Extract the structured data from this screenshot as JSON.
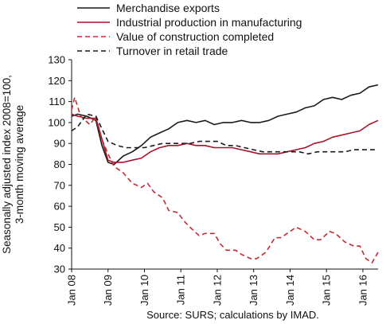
{
  "chart_data": {
    "type": "line",
    "title": "",
    "ylabel": "Seasonally adjusted index 2008=100, 3-month moving average",
    "ylim": [
      30,
      130
    ],
    "yticks": [
      30,
      40,
      50,
      60,
      70,
      80,
      90,
      100,
      110,
      120,
      130
    ],
    "x_start": "2008-01",
    "x_end": "2016-06",
    "xtick_labels": [
      "Jan 08",
      "Jan 09",
      "Jan 10",
      "Jan 11",
      "Jan 12",
      "Jan 13",
      "Jan 14",
      "Jan 15",
      "Jan 16"
    ],
    "grid": false,
    "legend_position": "top-left",
    "source": "Source: SURS; calculations by IMAD.",
    "series": [
      {
        "name": "Merchandise exports",
        "color": "#1a1a1a",
        "dash": "solid",
        "points": [
          [
            "2008-01",
            103
          ],
          [
            "2008-03",
            104
          ],
          [
            "2008-06",
            103
          ],
          [
            "2008-09",
            101
          ],
          [
            "2008-11",
            89
          ],
          [
            "2009-01",
            81
          ],
          [
            "2009-03",
            80
          ],
          [
            "2009-06",
            84
          ],
          [
            "2009-09",
            86
          ],
          [
            "2009-12",
            89
          ],
          [
            "2010-03",
            93
          ],
          [
            "2010-06",
            95
          ],
          [
            "2010-09",
            97
          ],
          [
            "2010-12",
            100
          ],
          [
            "2011-03",
            101
          ],
          [
            "2011-06",
            100
          ],
          [
            "2011-09",
            101
          ],
          [
            "2011-12",
            99
          ],
          [
            "2012-03",
            100
          ],
          [
            "2012-06",
            100
          ],
          [
            "2012-09",
            101
          ],
          [
            "2012-12",
            100
          ],
          [
            "2013-03",
            100
          ],
          [
            "2013-06",
            101
          ],
          [
            "2013-09",
            103
          ],
          [
            "2013-12",
            104
          ],
          [
            "2014-03",
            105
          ],
          [
            "2014-06",
            107
          ],
          [
            "2014-09",
            108
          ],
          [
            "2014-12",
            111
          ],
          [
            "2015-03",
            112
          ],
          [
            "2015-06",
            111
          ],
          [
            "2015-09",
            113
          ],
          [
            "2015-12",
            114
          ],
          [
            "2016-03",
            117
          ],
          [
            "2016-06",
            118
          ]
        ]
      },
      {
        "name": "Industrial production in manufacturing",
        "color": "#a8122a",
        "dash": "solid",
        "points": [
          [
            "2008-01",
            104
          ],
          [
            "2008-03",
            103
          ],
          [
            "2008-06",
            102
          ],
          [
            "2008-09",
            102
          ],
          [
            "2008-11",
            92
          ],
          [
            "2009-01",
            82
          ],
          [
            "2009-03",
            81
          ],
          [
            "2009-06",
            81
          ],
          [
            "2009-09",
            82
          ],
          [
            "2009-12",
            83
          ],
          [
            "2010-03",
            86
          ],
          [
            "2010-06",
            88
          ],
          [
            "2010-09",
            89
          ],
          [
            "2010-12",
            89
          ],
          [
            "2011-03",
            90
          ],
          [
            "2011-06",
            89
          ],
          [
            "2011-09",
            89
          ],
          [
            "2011-12",
            88
          ],
          [
            "2012-03",
            88
          ],
          [
            "2012-06",
            88
          ],
          [
            "2012-09",
            87
          ],
          [
            "2012-12",
            86
          ],
          [
            "2013-03",
            85
          ],
          [
            "2013-06",
            85
          ],
          [
            "2013-09",
            85
          ],
          [
            "2013-12",
            86
          ],
          [
            "2014-03",
            87
          ],
          [
            "2014-06",
            88
          ],
          [
            "2014-09",
            90
          ],
          [
            "2014-12",
            91
          ],
          [
            "2015-03",
            93
          ],
          [
            "2015-06",
            94
          ],
          [
            "2015-09",
            95
          ],
          [
            "2015-12",
            96
          ],
          [
            "2016-03",
            99
          ],
          [
            "2016-06",
            101
          ]
        ]
      },
      {
        "name": "Value of construction completed",
        "color": "#c22a35",
        "dash": "dashed",
        "points": [
          [
            "2008-01",
            106
          ],
          [
            "2008-02",
            112
          ],
          [
            "2008-04",
            103
          ],
          [
            "2008-07",
            99
          ],
          [
            "2008-09",
            103
          ],
          [
            "2008-11",
            92
          ],
          [
            "2009-01",
            85
          ],
          [
            "2009-03",
            79
          ],
          [
            "2009-06",
            76
          ],
          [
            "2009-09",
            71
          ],
          [
            "2009-12",
            69
          ],
          [
            "2010-02",
            71
          ],
          [
            "2010-04",
            67
          ],
          [
            "2010-07",
            64
          ],
          [
            "2010-09",
            58
          ],
          [
            "2010-12",
            57
          ],
          [
            "2011-02",
            53
          ],
          [
            "2011-04",
            50
          ],
          [
            "2011-07",
            46
          ],
          [
            "2011-09",
            47
          ],
          [
            "2011-12",
            47
          ],
          [
            "2012-02",
            42
          ],
          [
            "2012-04",
            39
          ],
          [
            "2012-07",
            39
          ],
          [
            "2012-09",
            37
          ],
          [
            "2012-12",
            35
          ],
          [
            "2013-02",
            35
          ],
          [
            "2013-05",
            38
          ],
          [
            "2013-08",
            45
          ],
          [
            "2013-10",
            45
          ],
          [
            "2014-01",
            48
          ],
          [
            "2014-03",
            50
          ],
          [
            "2014-06",
            48
          ],
          [
            "2014-09",
            44
          ],
          [
            "2014-11",
            44
          ],
          [
            "2015-02",
            48
          ],
          [
            "2015-04",
            47
          ],
          [
            "2015-07",
            43
          ],
          [
            "2015-10",
            41
          ],
          [
            "2015-12",
            41
          ],
          [
            "2016-02",
            35
          ],
          [
            "2016-04",
            33
          ],
          [
            "2016-06",
            38
          ]
        ]
      },
      {
        "name": "Turnover in retail trade",
        "color": "#1a1a1a",
        "dash": "dashed",
        "points": [
          [
            "2008-01",
            96
          ],
          [
            "2008-03",
            98
          ],
          [
            "2008-06",
            104
          ],
          [
            "2008-09",
            103
          ],
          [
            "2008-11",
            97
          ],
          [
            "2009-01",
            91
          ],
          [
            "2009-04",
            89
          ],
          [
            "2009-07",
            88
          ],
          [
            "2009-10",
            88
          ],
          [
            "2010-01",
            88
          ],
          [
            "2010-04",
            89
          ],
          [
            "2010-07",
            90
          ],
          [
            "2010-10",
            90
          ],
          [
            "2011-01",
            90
          ],
          [
            "2011-04",
            90
          ],
          [
            "2011-07",
            91
          ],
          [
            "2011-10",
            91
          ],
          [
            "2012-01",
            91
          ],
          [
            "2012-04",
            89
          ],
          [
            "2012-07",
            89
          ],
          [
            "2012-10",
            88
          ],
          [
            "2013-01",
            87
          ],
          [
            "2013-04",
            86
          ],
          [
            "2013-07",
            86
          ],
          [
            "2013-10",
            86
          ],
          [
            "2014-01",
            86
          ],
          [
            "2014-04",
            86
          ],
          [
            "2014-07",
            85
          ],
          [
            "2014-10",
            86
          ],
          [
            "2015-01",
            86
          ],
          [
            "2015-04",
            86
          ],
          [
            "2015-07",
            86
          ],
          [
            "2015-10",
            87
          ],
          [
            "2016-01",
            87
          ],
          [
            "2016-06",
            87
          ]
        ]
      }
    ]
  }
}
